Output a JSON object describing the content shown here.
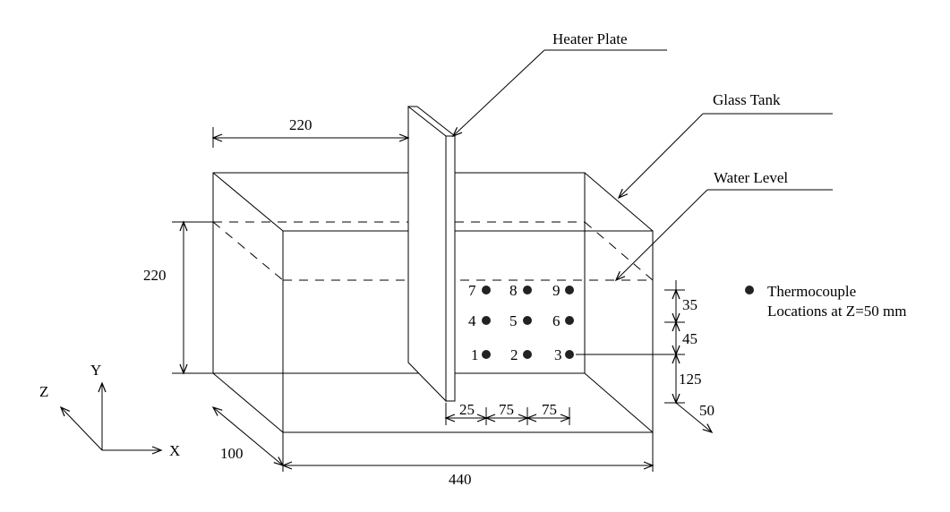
{
  "labels": {
    "heater_plate": "Heater Plate",
    "glass_tank": "Glass Tank",
    "water_level": "Water Level",
    "legend_line1": "Thermocouple",
    "legend_line2": "Locations at Z=50 mm"
  },
  "dimensions": {
    "plate_offset": "220",
    "water_height": "220",
    "tank_depth": "100",
    "tank_length": "440",
    "tc_dx_first": "25",
    "tc_dx_second": "75",
    "tc_dx_third": "75",
    "tc_dy_top": "35",
    "tc_dy_mid": "45",
    "tc_dy_bottom": "125",
    "tc_z": "50"
  },
  "axes": {
    "x": "X",
    "y": "Y",
    "z": "Z"
  },
  "thermocouples": [
    "1",
    "2",
    "3",
    "4",
    "5",
    "6",
    "7",
    "8",
    "9"
  ]
}
